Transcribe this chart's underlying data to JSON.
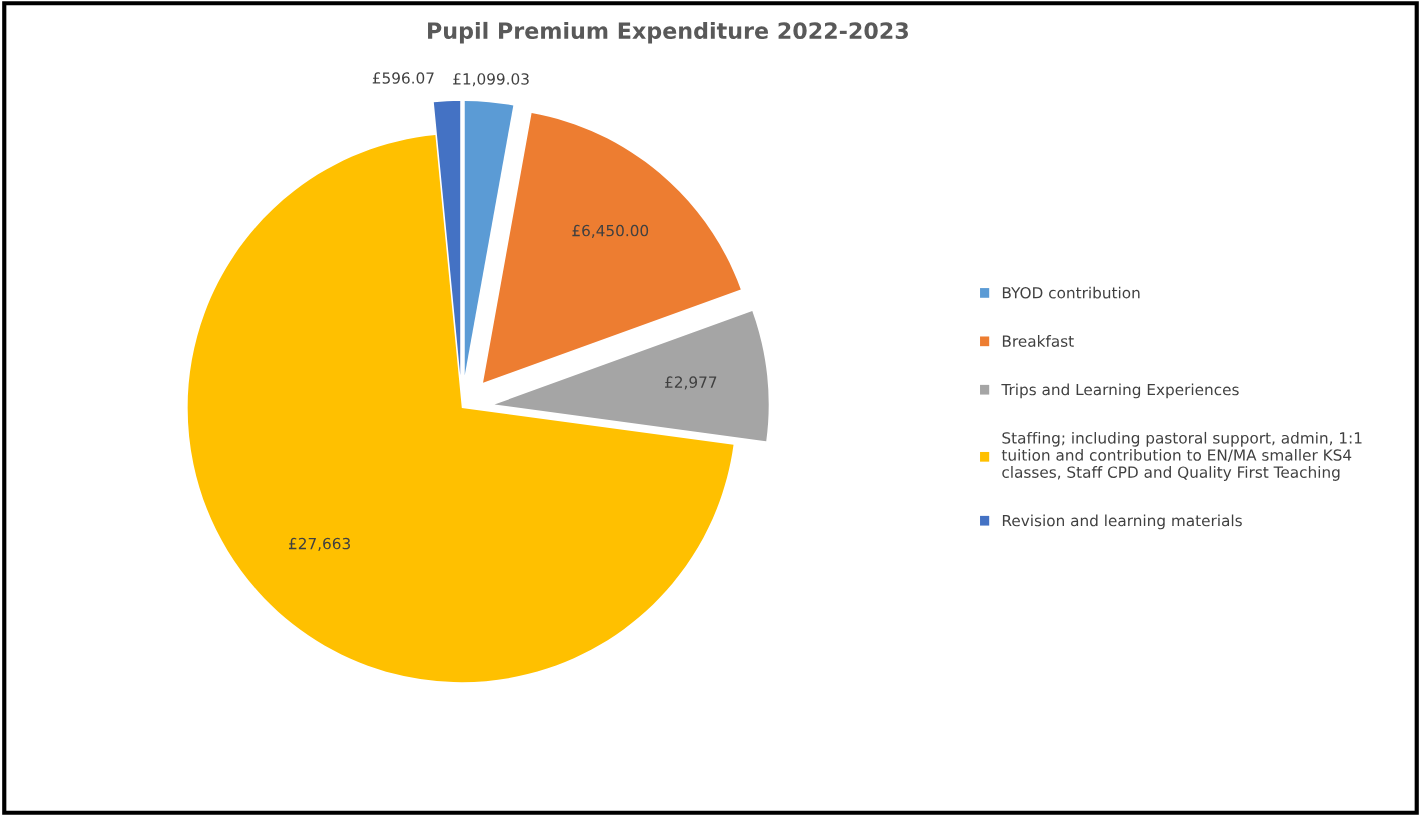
{
  "chart_data": {
    "type": "pie",
    "title": "Pupil Premium Expenditure 2022-2023",
    "categories": [
      "BYOD contribution",
      "Breakfast",
      "Trips and Learning Experiences",
      "Staffing; including pastoral support, admin, 1:1\ntuition and contribution to EN/MA smaller KS4\nclasses, Staff CPD and Quality First Teaching",
      "Revision and learning materials"
    ],
    "values": [
      1099.03,
      6450.0,
      2977,
      27663,
      596.07
    ],
    "value_labels": [
      "£1,099.03",
      "£6,450.00",
      "£2,977",
      "£27,663",
      "£596.07"
    ],
    "colors": [
      "#5b9bd5",
      "#ed7d31",
      "#a5a5a5",
      "#ffc000",
      "#4472c4"
    ],
    "legend": "right"
  }
}
